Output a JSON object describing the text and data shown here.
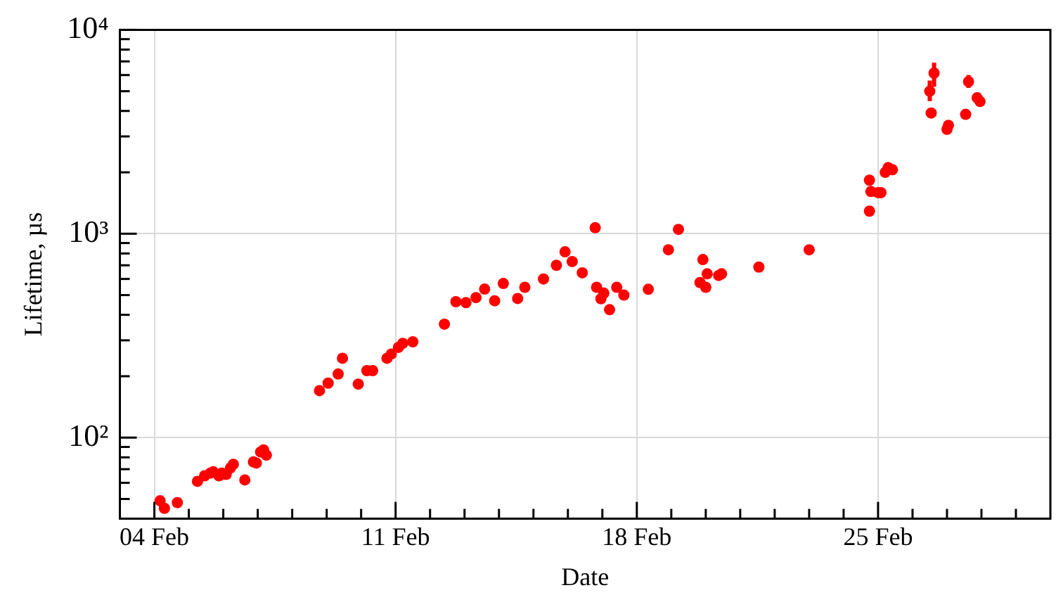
{
  "chart_data": {
    "type": "scatter",
    "xlabel": "Date",
    "ylabel": "Lifetime, µs",
    "log": true,
    "grid": true,
    "marker": "circle",
    "color": "#ff0000",
    "xlim": [
      "--02-03",
      "--03-01"
    ],
    "xticks": [
      {
        "value": "--02-04",
        "label": "04 Feb"
      },
      {
        "value": "--02-05",
        "label": null
      },
      {
        "value": "--02-06",
        "label": null
      },
      {
        "value": "--02-07",
        "label": null
      },
      {
        "value": "--02-08",
        "label": null
      },
      {
        "value": "--02-09",
        "label": null
      },
      {
        "value": "--02-10",
        "label": null
      },
      {
        "value": "--02-11",
        "label": "11 Feb"
      },
      {
        "value": "--02-12",
        "label": null
      },
      {
        "value": "--02-13",
        "label": null
      },
      {
        "value": "--02-14",
        "label": null
      },
      {
        "value": "--02-15",
        "label": null
      },
      {
        "value": "--02-16",
        "label": null
      },
      {
        "value": "--02-17",
        "label": null
      },
      {
        "value": "--02-18",
        "label": "18 Feb"
      },
      {
        "value": "--02-19",
        "label": null
      },
      {
        "value": "--02-20",
        "label": null
      },
      {
        "value": "--02-21",
        "label": null
      },
      {
        "value": "--02-22",
        "label": null
      },
      {
        "value": "--02-23",
        "label": null
      },
      {
        "value": "--02-24",
        "label": null
      },
      {
        "value": "--02-25",
        "label": "25 Feb"
      },
      {
        "value": "--02-26",
        "label": null
      },
      {
        "value": "--02-27",
        "label": null
      },
      {
        "value": "--02-28",
        "label": null
      },
      {
        "value": "--02-29",
        "label": null
      }
    ],
    "ylim": [
      40,
      10000
    ],
    "yticks": [
      {
        "value": 50,
        "label": null
      },
      {
        "value": 60,
        "label": null
      },
      {
        "value": 70,
        "label": null
      },
      {
        "value": 80,
        "label": null
      },
      {
        "value": 90,
        "label": null
      },
      {
        "value": 100,
        "label": "10²"
      },
      {
        "value": 200,
        "label": null
      },
      {
        "value": 300,
        "label": null
      },
      {
        "value": 400,
        "label": null
      },
      {
        "value": 500,
        "label": null
      },
      {
        "value": 600,
        "label": null
      },
      {
        "value": 700,
        "label": null
      },
      {
        "value": 800,
        "label": null
      },
      {
        "value": 900,
        "label": null
      },
      {
        "value": 1000,
        "label": "10³"
      },
      {
        "value": 2000,
        "label": null
      },
      {
        "value": 3000,
        "label": null
      },
      {
        "value": 4000,
        "label": null
      },
      {
        "value": 5000,
        "label": null
      },
      {
        "value": 6000,
        "label": null
      },
      {
        "value": 7000,
        "label": null
      },
      {
        "value": 8000,
        "label": null
      },
      {
        "value": 9000,
        "label": null
      },
      {
        "value": 10000,
        "label": "10⁴"
      }
    ],
    "x": [
      "--02-04T04:00",
      "--02-04T07:00",
      "--02-04T16:00",
      "--02-05T06:00",
      "--02-05T11:00",
      "--02-05T15:00",
      "--02-05T17:00",
      "--02-05T21:00",
      "--02-05T23:00",
      "--02-06T02:00",
      "--02-06T05:00",
      "--02-06T07:00",
      "--02-06T15:00",
      "--02-06T21:00",
      "--02-06T23:00",
      "--02-07T02:00",
      "--02-07T04:00",
      "--02-07T06:00",
      "--02-08T19:00",
      "--02-09T01:00",
      "--02-09T08:00",
      "--02-09T11:00",
      "--02-09T22:00",
      "--02-10T04:00",
      "--02-10T08:00",
      "--02-10T18:00",
      "--02-10T21:00",
      "--02-11T02:00",
      "--02-11T05:00",
      "--02-11T12:00",
      "--02-12T10:00",
      "--02-12T18:00",
      "--02-13T01:00",
      "--02-13T08:00",
      "--02-13T14:00",
      "--02-13T21:00",
      "--02-14T03:00",
      "--02-14T13:00",
      "--02-14T18:00",
      "--02-15T07:00",
      "--02-15T16:00",
      "--02-15T22:00",
      "--02-16T03:00",
      "--02-16T10:00",
      "--02-16T19:00",
      "--02-16T20:00",
      "--02-16T23:00",
      "--02-17T01:00",
      "--02-17T05:00",
      "--02-17T10:00",
      "--02-17T15:00",
      "--02-18T08:00",
      "--02-18T22:00",
      "--02-19T05:00",
      "--02-19T20:00",
      "--02-19T22:00",
      "--02-20T00:00",
      "--02-20T01:00",
      "--02-20T09:00",
      "--02-20T11:00",
      "--02-21T13:00",
      "--02-23T00:00",
      "--02-24T18:00",
      "--02-24T18:00",
      "--02-24T19:00",
      "--02-25T00:00",
      "--02-25T02:00",
      "--02-25T05:00",
      "--02-25T07:00",
      "--02-25T10:00",
      "--02-26T12:00",
      "--02-26T13:00",
      "--02-26T15:00",
      "--02-27T00:00",
      "--02-27T01:00",
      "--02-27T13:00",
      "--02-27T15:00",
      "--02-27T21:00",
      "--02-27T23:00"
    ],
    "values": [
      49,
      45,
      48,
      61,
      65,
      67,
      68,
      65,
      67,
      66,
      71,
      74,
      62,
      76,
      75,
      85,
      87,
      82,
      170,
      185,
      205,
      245,
      183,
      213,
      213,
      245,
      257,
      277,
      290,
      295,
      360,
      464,
      459,
      486,
      535,
      469,
      570,
      481,
      546,
      600,
      700,
      815,
      730,
      643,
      1070,
      546,
      480,
      511,
      424,
      546,
      500,
      534,
      834,
      1050,
      576,
      747,
      546,
      636,
      624,
      636,
      686,
      834,
      1290,
      1830,
      1610,
      1590,
      1590,
      2000,
      2110,
      2060,
      5000,
      3910,
      6130,
      3250,
      3400,
      3850,
      5570,
      4640,
      4450
    ],
    "errors": [
      null,
      null,
      null,
      null,
      null,
      null,
      null,
      null,
      null,
      null,
      null,
      null,
      null,
      null,
      null,
      null,
      null,
      null,
      null,
      null,
      null,
      null,
      null,
      null,
      null,
      null,
      null,
      null,
      null,
      null,
      null,
      null,
      null,
      null,
      null,
      null,
      null,
      null,
      null,
      null,
      null,
      null,
      null,
      null,
      null,
      null,
      null,
      null,
      null,
      null,
      null,
      null,
      null,
      null,
      null,
      null,
      null,
      null,
      null,
      null,
      null,
      null,
      null,
      null,
      null,
      null,
      null,
      null,
      null,
      null,
      [
        4470,
        5640
      ],
      null,
      [
        5260,
        6900
      ],
      null,
      null,
      null,
      [
        5190,
        6000
      ],
      null,
      null
    ]
  }
}
